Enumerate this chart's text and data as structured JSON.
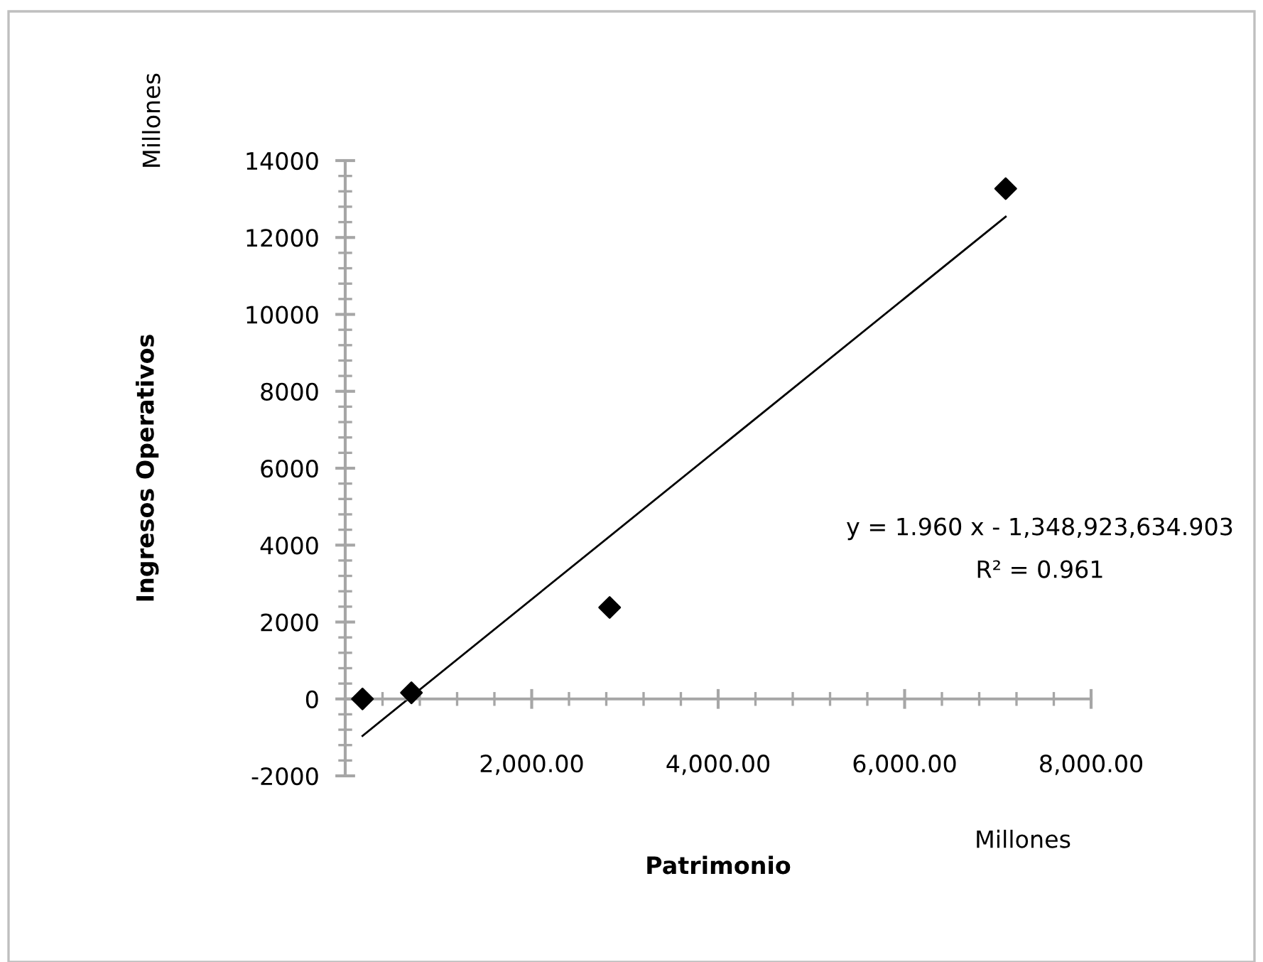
{
  "chart_data": {
    "type": "scatter",
    "xlabel": "Patrimonio",
    "ylabel": "Ingresos Operativos",
    "annotations": [
      "Millones",
      "Millones",
      "y = 1.960 x - 1,348,923,634.903",
      "R² = 0.961"
    ],
    "series": [
      {
        "color": "#000000",
        "marker": "diamond",
        "x": [
          185,
          710,
          2836,
          7084
        ],
        "values": [
          0,
          160,
          2380,
          13270
        ]
      },
      {
        "type": "line",
        "color": "#000000",
        "marker": "none",
        "line_style": "solid",
        "x": [
          185,
          7084
        ],
        "values": [
          -960,
          12540
        ]
      }
    ],
    "xlim": [
      0,
      8000
    ],
    "ylim": [
      -2000,
      14000
    ],
    "xticks": [
      {
        "value": 2000,
        "label": "2,000.00"
      },
      {
        "value": 4000,
        "label": "4,000.00"
      },
      {
        "value": 6000,
        "label": "6,000.00"
      },
      {
        "value": 8000,
        "label": "8,000.00"
      }
    ],
    "yticks": [
      -2000,
      0,
      2000,
      4000,
      6000,
      8000,
      10000,
      12000,
      14000
    ],
    "grid": false,
    "legend": false
  }
}
